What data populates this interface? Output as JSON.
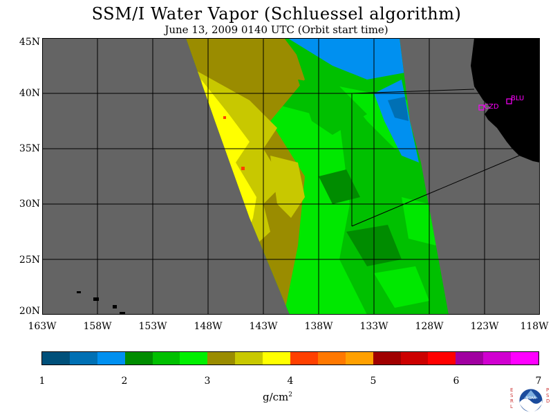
{
  "title": "SSM/I Water Vapor (Schluessel algorithm)",
  "subtitle": "June 13, 2009  0140 UTC  (Orbit start time)",
  "lat_labels": [
    "45N",
    "40N",
    "35N",
    "30N",
    "25N",
    "20N"
  ],
  "lon_labels": [
    "163W",
    "158W",
    "153W",
    "148W",
    "143W",
    "138W",
    "133W",
    "128W",
    "123W",
    "118W"
  ],
  "stations": [
    "CZD",
    "BLU"
  ],
  "colorbar": {
    "ticks": [
      "1",
      "2",
      "3",
      "4",
      "5",
      "6",
      "7"
    ],
    "unit": "g/cm",
    "unit_exp": "2",
    "colors": [
      "#00507a",
      "#0070b4",
      "#0090f0",
      "#008c00",
      "#00c000",
      "#00f000",
      "#9a8c00",
      "#c8c800",
      "#ffff00",
      "#ff4000",
      "#ff7800",
      "#ffa000",
      "#a00000",
      "#cc0000",
      "#ff0000",
      "#a000a0",
      "#d000d0",
      "#ff00ff"
    ]
  },
  "map_colors": {
    "land": "#000000",
    "no_data": "#646464",
    "grid": "#000000",
    "station": "#ff00ff"
  },
  "logo": {
    "left_text": [
      "E",
      "S",
      "R",
      "L"
    ],
    "right_text": [
      "P",
      "S",
      "D"
    ],
    "center": "NOAA"
  }
}
